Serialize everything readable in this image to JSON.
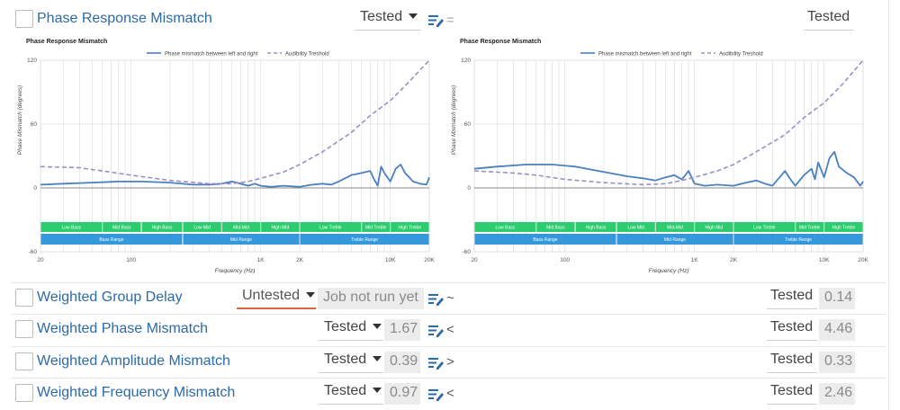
{
  "rows": [
    {
      "title": "Phase Response Mismatch",
      "status": "Tested",
      "operator": "=",
      "right_status": "Tested"
    },
    {
      "title": "Weighted Group Delay",
      "status": "Untested",
      "left_value": "Job not run yet",
      "operator": "~",
      "right_status": "Tested",
      "right_value": "0.14"
    },
    {
      "title": "Weighted Phase Mismatch",
      "status": "Tested",
      "left_value": "1.67",
      "operator": "<",
      "right_status": "Tested",
      "right_value": "4.46"
    },
    {
      "title": "Weighted Amplitude Mismatch",
      "status": "Tested",
      "left_value": "0.39",
      "operator": ">",
      "right_status": "Tested",
      "right_value": "0.33"
    },
    {
      "title": "Weighted Frequency Mismatch",
      "status": "Tested",
      "left_value": "0.97",
      "operator": "<",
      "right_status": "Tested",
      "right_value": "2.46"
    }
  ],
  "colors": {
    "mismatch_line": "#4a7fc1",
    "threshold_line": "#9b8fc4",
    "band_green": "#2ecc71",
    "range_blue": "#3498db",
    "link": "#2d6aa8",
    "untested_underline": "#d9633a"
  },
  "chart_data": [
    {
      "type": "line",
      "title": "Phase Response Mismatch",
      "xlabel": "Frequency (Hz)",
      "ylabel": "Phase Mismatch (degrees)",
      "x_scale": "log",
      "xlim": [
        20,
        20000
      ],
      "ylim": [
        -60,
        120
      ],
      "yticks": [
        -60,
        0,
        60,
        120
      ],
      "xticks": [
        {
          "v": 20,
          "label": "20"
        },
        {
          "v": 100,
          "label": "100"
        },
        {
          "v": 1000,
          "label": "1K"
        },
        {
          "v": 2000,
          "label": "2K"
        },
        {
          "v": 10000,
          "label": "10K"
        },
        {
          "v": 20000,
          "label": "20K"
        }
      ],
      "series": [
        {
          "name": "Phase mismatch between left and right",
          "style": "solid",
          "points": [
            [
              20,
              3
            ],
            [
              30,
              4
            ],
            [
              50,
              5
            ],
            [
              80,
              6
            ],
            [
              120,
              6
            ],
            [
              200,
              5
            ],
            [
              300,
              3
            ],
            [
              400,
              3
            ],
            [
              500,
              4
            ],
            [
              600,
              6
            ],
            [
              700,
              4
            ],
            [
              800,
              2
            ],
            [
              900,
              4
            ],
            [
              1000,
              2
            ],
            [
              1200,
              1
            ],
            [
              1500,
              2
            ],
            [
              2000,
              1
            ],
            [
              2500,
              3
            ],
            [
              3000,
              4
            ],
            [
              3500,
              3
            ],
            [
              4000,
              6
            ],
            [
              5000,
              12
            ],
            [
              6000,
              14
            ],
            [
              7000,
              16
            ],
            [
              7500,
              8
            ],
            [
              8000,
              2
            ],
            [
              8500,
              20
            ],
            [
              9000,
              14
            ],
            [
              10000,
              6
            ],
            [
              11000,
              18
            ],
            [
              12000,
              22
            ],
            [
              13000,
              14
            ],
            [
              15000,
              6
            ],
            [
              17000,
              4
            ],
            [
              19000,
              3
            ],
            [
              20000,
              10
            ]
          ]
        },
        {
          "name": "Audibility Treshold",
          "style": "dashed",
          "points": [
            [
              20,
              20
            ],
            [
              40,
              19
            ],
            [
              60,
              16
            ],
            [
              100,
              12
            ],
            [
              200,
              7
            ],
            [
              400,
              4
            ],
            [
              600,
              4
            ],
            [
              800,
              6
            ],
            [
              1000,
              9
            ],
            [
              1500,
              15
            ],
            [
              2000,
              22
            ],
            [
              3000,
              34
            ],
            [
              5000,
              52
            ],
            [
              7000,
              68
            ],
            [
              10000,
              82
            ],
            [
              14000,
              100
            ],
            [
              20000,
              120
            ]
          ]
        }
      ],
      "bands": [
        {
          "label": "Low Bass",
          "from": 20,
          "to": 60
        },
        {
          "label": "Mid Bass",
          "from": 60,
          "to": 120
        },
        {
          "label": "High Bass",
          "from": 120,
          "to": 250
        },
        {
          "label": "Low Mid",
          "from": 250,
          "to": 500
        },
        {
          "label": "Mid-Mid",
          "from": 500,
          "to": 1000
        },
        {
          "label": "High Mid",
          "from": 1000,
          "to": 2000
        },
        {
          "label": "Low Treble",
          "from": 2000,
          "to": 6000
        },
        {
          "label": "Mid Treble",
          "from": 6000,
          "to": 10000
        },
        {
          "label": "High Treble",
          "from": 10000,
          "to": 20000
        }
      ],
      "ranges": [
        {
          "label": "Bass Range",
          "from": 20,
          "to": 250
        },
        {
          "label": "Mid Range",
          "from": 250,
          "to": 2000
        },
        {
          "label": "Treble Range",
          "from": 2000,
          "to": 20000
        }
      ]
    },
    {
      "type": "line",
      "title": "Phase Response Mismatch",
      "xlabel": "Frequency (Hz)",
      "ylabel": "Phase Mismatch (degrees)",
      "x_scale": "log",
      "xlim": [
        20,
        20000
      ],
      "ylim": [
        -60,
        120
      ],
      "yticks": [
        -60,
        0,
        60,
        120
      ],
      "xticks": [
        {
          "v": 20,
          "label": "20"
        },
        {
          "v": 100,
          "label": "100"
        },
        {
          "v": 1000,
          "label": "1K"
        },
        {
          "v": 2000,
          "label": "2K"
        },
        {
          "v": 10000,
          "label": "10K"
        },
        {
          "v": 20000,
          "label": "20K"
        }
      ],
      "series": [
        {
          "name": "Phase mismatch between left and right",
          "style": "solid",
          "points": [
            [
              20,
              18
            ],
            [
              30,
              20
            ],
            [
              50,
              22
            ],
            [
              80,
              22
            ],
            [
              120,
              20
            ],
            [
              200,
              15
            ],
            [
              300,
              11
            ],
            [
              400,
              9
            ],
            [
              500,
              7
            ],
            [
              600,
              10
            ],
            [
              700,
              12
            ],
            [
              800,
              8
            ],
            [
              900,
              16
            ],
            [
              1000,
              4
            ],
            [
              1200,
              2
            ],
            [
              1500,
              3
            ],
            [
              2000,
              2
            ],
            [
              2500,
              5
            ],
            [
              3000,
              7
            ],
            [
              3500,
              4
            ],
            [
              4000,
              2
            ],
            [
              5000,
              16
            ],
            [
              5500,
              8
            ],
            [
              6000,
              2
            ],
            [
              7000,
              12
            ],
            [
              8000,
              18
            ],
            [
              8500,
              8
            ],
            [
              9000,
              24
            ],
            [
              10000,
              10
            ],
            [
              11000,
              28
            ],
            [
              12000,
              34
            ],
            [
              13000,
              20
            ],
            [
              15000,
              14
            ],
            [
              17000,
              10
            ],
            [
              19000,
              2
            ],
            [
              20000,
              6
            ]
          ]
        },
        {
          "name": "Audibility Treshold",
          "style": "dashed",
          "points": [
            [
              20,
              16
            ],
            [
              40,
              14
            ],
            [
              60,
              12
            ],
            [
              100,
              8
            ],
            [
              200,
              5
            ],
            [
              400,
              3
            ],
            [
              600,
              4
            ],
            [
              800,
              7
            ],
            [
              1000,
              10
            ],
            [
              1500,
              16
            ],
            [
              2000,
              22
            ],
            [
              3000,
              34
            ],
            [
              5000,
              50
            ],
            [
              7000,
              66
            ],
            [
              10000,
              80
            ],
            [
              14000,
              98
            ],
            [
              20000,
              120
            ]
          ]
        }
      ],
      "bands": [
        {
          "label": "Low Bass",
          "from": 20,
          "to": 60
        },
        {
          "label": "Mid Bass",
          "from": 60,
          "to": 120
        },
        {
          "label": "High Bass",
          "from": 120,
          "to": 250
        },
        {
          "label": "Low Mid",
          "from": 250,
          "to": 500
        },
        {
          "label": "Mid-Mid",
          "from": 500,
          "to": 1000
        },
        {
          "label": "High Mid",
          "from": 1000,
          "to": 2000
        },
        {
          "label": "Low Treble",
          "from": 2000,
          "to": 6000
        },
        {
          "label": "Mid Treble",
          "from": 6000,
          "to": 10000
        },
        {
          "label": "High Treble",
          "from": 10000,
          "to": 20000
        }
      ],
      "ranges": [
        {
          "label": "Bass Range",
          "from": 20,
          "to": 250
        },
        {
          "label": "Mid Range",
          "from": 250,
          "to": 2000
        },
        {
          "label": "Treble Range",
          "from": 2000,
          "to": 20000
        }
      ]
    }
  ]
}
